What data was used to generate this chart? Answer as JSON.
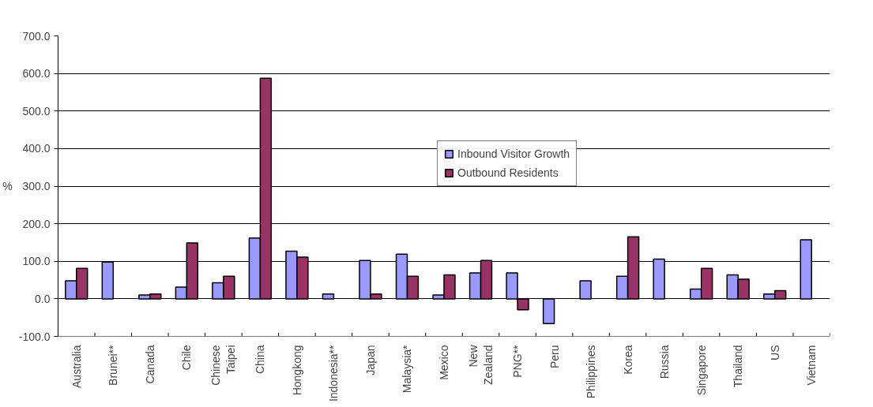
{
  "chart_data": {
    "type": "bar",
    "ylabel": "%",
    "categories": [
      "Australia",
      "Brunei**",
      "Canada",
      "Chile",
      "Chinese Taipei",
      "China",
      "Hongkong",
      "Indonesia**",
      "Japan",
      "Malaysia*",
      "Mexico",
      "New Zealand",
      "PNG**",
      "Peru",
      "Philippines",
      "Korea",
      "Russia",
      "Singapore",
      "Thailand",
      "US",
      "Vietnam"
    ],
    "series": [
      {
        "name": "Inbound Visitor Growth",
        "color": "#9999ff",
        "values": [
          48,
          98,
          10,
          31,
          43,
          162,
          127,
          13,
          102,
          119,
          10,
          69,
          69,
          -66,
          48,
          60,
          106,
          26,
          64,
          13,
          157
        ]
      },
      {
        "name": "Outbound Residents",
        "color": "#993366",
        "values": [
          81,
          null,
          13,
          149,
          60,
          587,
          111,
          null,
          13,
          60,
          64,
          102,
          -29,
          null,
          null,
          165,
          null,
          81,
          52,
          22,
          null
        ]
      }
    ],
    "ylim": [
      -100,
      700
    ],
    "yticks": [
      {
        "value": -100,
        "label": "-100.0"
      },
      {
        "value": 0,
        "label": "0.0"
      },
      {
        "value": 100,
        "label": "100.0"
      },
      {
        "value": 200,
        "label": "200.0"
      },
      {
        "value": 300,
        "label": "300.0"
      },
      {
        "value": 400,
        "label": "400.0"
      },
      {
        "value": 500,
        "label": "500.0"
      },
      {
        "value": 600,
        "label": "600.0"
      },
      {
        "value": 700,
        "label": "700.0"
      }
    ],
    "grid": "y",
    "legend": "top right"
  }
}
